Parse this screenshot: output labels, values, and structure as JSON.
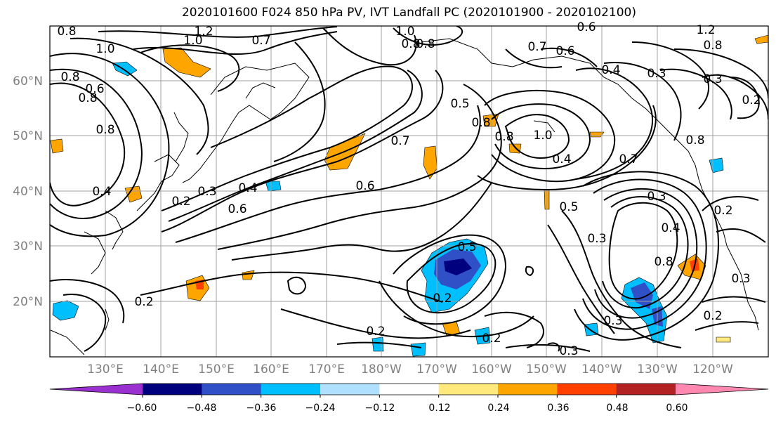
{
  "title": "2020101600 F024 850 hPa PV, IVT Landfall PC (2020101900 - 2020102100)",
  "lat_labels": [
    "60°N",
    "50°N",
    "40°N",
    "30°N",
    "20°N"
  ],
  "lon_labels": [
    "130°E",
    "140°E",
    "150°E",
    "160°E",
    "170°E",
    "180°W",
    "170°W",
    "160°W",
    "150°W",
    "140°W",
    "130°W",
    "120°W"
  ],
  "colorbar": {
    "colors": [
      "#9b30d0",
      "#00007f",
      "#3050c8",
      "#00bfff",
      "#b0e0ff",
      "#ffffff",
      "#ffe87c",
      "#ffa500",
      "#ff4000",
      "#b22222",
      "#ff88b0"
    ],
    "tick_labels": [
      "−0.60",
      "−0.48",
      "−0.36",
      "−0.24",
      "−0.12",
      "0.12",
      "0.24",
      "0.36",
      "0.48",
      "0.60"
    ]
  },
  "contour_labels": [
    "1.2",
    "1.0",
    "0.8",
    "0.7",
    "1.0",
    "0.8",
    "0.8",
    "0.6",
    "0.7",
    "0.6",
    "1.2",
    "0.8",
    "0.8",
    "1.0",
    "0.6",
    "0.8",
    "0.4",
    "0.3",
    "0.8",
    "0.8",
    "0.3",
    "0.2",
    "0.5",
    "0.8",
    "1.0",
    "0.8",
    "0.7",
    "0.7",
    "0.4",
    "0.6",
    "0.4",
    "0.3",
    "0.2",
    "0.6",
    "0.4",
    "0.5",
    "0.3",
    "0.2",
    "0.4",
    "0.5",
    "0.3",
    "0.8",
    "0.3",
    "0.2",
    "0.2",
    "0.3",
    "0.2",
    "0.2",
    "0.2",
    "0.3"
  ]
}
